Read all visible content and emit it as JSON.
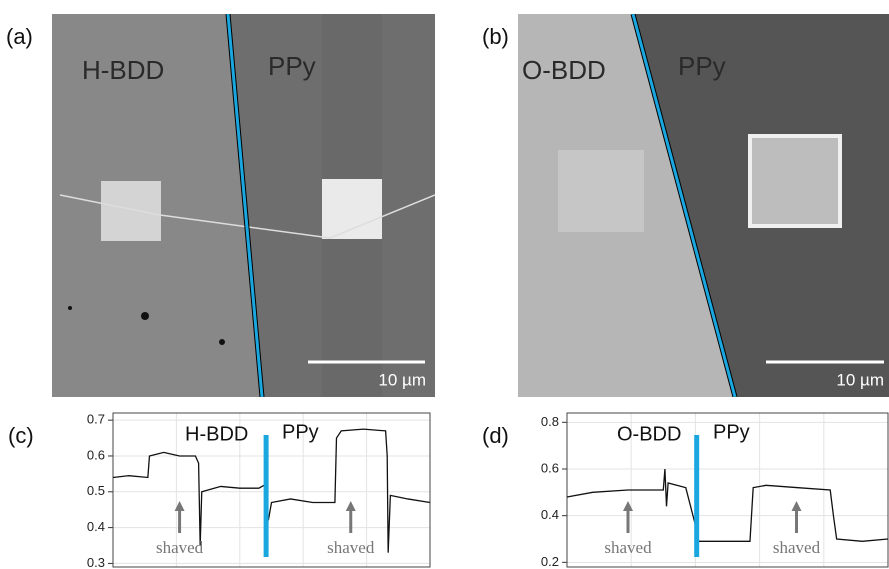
{
  "panels": [
    {
      "label": "(a)",
      "left_region": "H-BDD",
      "right_region": "PPy",
      "scale_bar": "10 µm"
    },
    {
      "label": "(b)",
      "left_region": "O-BDD",
      "right_region": "PPy",
      "scale_bar": "10 µm"
    }
  ],
  "chart_data": [
    {
      "type": "line",
      "label": "(c)",
      "left_region": "H-BDD",
      "right_region": "PPy",
      "xlim": [
        0,
        100
      ],
      "ylim": [
        0.29,
        0.72
      ],
      "yticks": [
        0.3,
        0.4,
        0.5,
        0.6,
        0.7
      ],
      "x": [
        0,
        5,
        11,
        11.5,
        16,
        21,
        26,
        27,
        27.5,
        28,
        34,
        40,
        46,
        48,
        49,
        50,
        56,
        63,
        70,
        70.5,
        72,
        79,
        86,
        86.5,
        86.8,
        87.5,
        93,
        100
      ],
      "series": [
        {
          "color": "#111111",
          "values": [
            0.54,
            0.545,
            0.54,
            0.6,
            0.61,
            0.6,
            0.6,
            0.58,
            0.35,
            0.5,
            0.515,
            0.51,
            0.51,
            0.52,
            0.42,
            0.47,
            0.48,
            0.47,
            0.47,
            0.65,
            0.67,
            0.675,
            0.67,
            0.6,
            0.33,
            0.49,
            0.48,
            0.47
          ]
        }
      ],
      "interface_x": 48.3,
      "interface_color": "#1aa7e0",
      "annotations": [
        {
          "text": "shaved",
          "x": 21
        },
        {
          "text": "shaved",
          "x": 75
        }
      ]
    },
    {
      "type": "line",
      "label": "(d)",
      "left_region": "O-BDD",
      "right_region": "PPy",
      "xlim": [
        0,
        100
      ],
      "ylim": [
        0.18,
        0.84
      ],
      "yticks": [
        0.2,
        0.4,
        0.6,
        0.8
      ],
      "x": [
        0,
        8,
        19,
        30,
        30.5,
        31,
        31.5,
        37,
        40,
        41,
        49,
        57,
        58,
        62,
        72,
        82,
        83,
        84,
        92,
        100
      ],
      "series": [
        {
          "color": "#111111",
          "values": [
            0.48,
            0.5,
            0.51,
            0.51,
            0.6,
            0.44,
            0.54,
            0.52,
            0.36,
            0.29,
            0.29,
            0.29,
            0.52,
            0.53,
            0.52,
            0.51,
            0.4,
            0.3,
            0.29,
            0.3
          ]
        }
      ],
      "interface_x": 40.4,
      "interface_color": "#1aa7e0",
      "annotations": [
        {
          "text": "shaved",
          "x": 19
        },
        {
          "text": "shaved",
          "x": 71.5
        }
      ]
    }
  ]
}
